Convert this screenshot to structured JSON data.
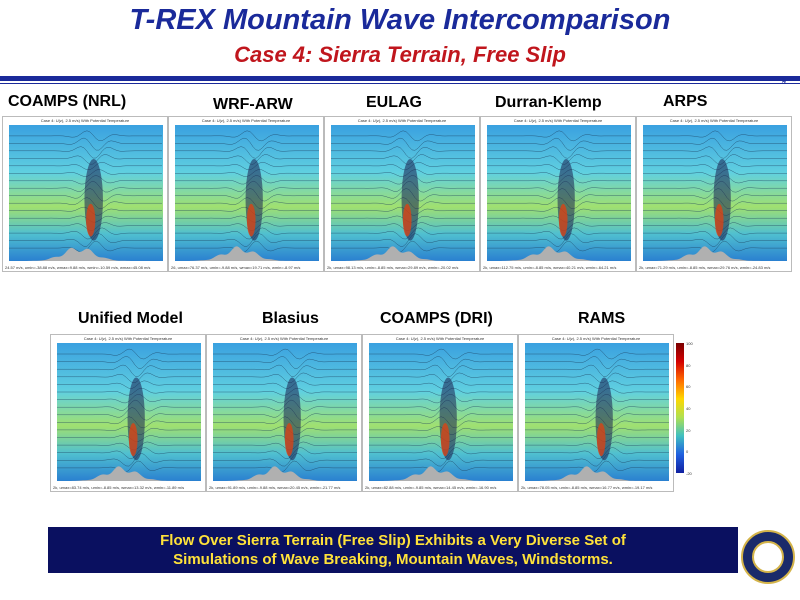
{
  "title": "T-REX Mountain Wave Intercomparison",
  "subtitle": "Case 4:  Sierra Terrain, Free Slip",
  "page_number": "9",
  "panel_title": "Case 4: U(z), 2.5 m/s) With Potential Temperature",
  "panel_xlabel": "Distance (km)",
  "models_top": [
    {
      "name": "COAMPS (NRL)",
      "footer": "24.57 m/s, umin=-38.88 m/s, wmax=9.88 m/s, wmin=-10.59 m/s, wmax=45.08 m/s"
    },
    {
      "name": "WRF-ARW",
      "footer": "26, umax=76.37 m/s, umin=-9.88 m/s, wmax=19.71 m/s, wmin=-8.97 m/s"
    },
    {
      "name": "EULAG",
      "footer": "2k, umax=98.13 m/s, umin=-8.85 m/s, wmax=29.89 m/s, wmin=-20.02 m/s"
    },
    {
      "name": "Durran-Klemp",
      "footer": "2k, umax=112.75 m/s, umin=-8.85 m/s, wmax=40.21 m/s, wmin=-64.21 m/s"
    },
    {
      "name": "ARPS",
      "footer": "2k, umax=71.29 m/s, umin=-8.85 m/s, wmax=29.76 m/s, wmin=-24.83 m/s"
    }
  ],
  "models_bottom": [
    {
      "name": "Unified Model",
      "footer": "2k, umax=83.74 m/s, umin=-8.85 m/s, wmax=13.32 m/s, wmin=-11.89 m/s"
    },
    {
      "name": "Blasius",
      "footer": "2k, umax=91.89 m/s, umin=-9.88 m/s, wmax=20.45 m/s, wmin=-21.77 m/s"
    },
    {
      "name": "COAMPS (DRI)",
      "footer": "2k, umax=82.88 m/s, umin=-9.85 m/s, wmax=14.45 m/s, wmin=-16.90 m/s"
    },
    {
      "name": "RAMS",
      "footer": "2k, umax=78.05 m/s, umin=-8.85 m/s, wmax=16.77 m/s, wmin=-19.17 m/s"
    }
  ],
  "colorbar_ticks": [
    "100",
    "80",
    "60",
    "40",
    "20",
    "0",
    "-20"
  ],
  "banner_line1": "Flow Over Sierra Terrain (Free Slip) Exhibits a Very Diverse Set of",
  "banner_line2": "Simulations of Wave Breaking, Mountain Waves, Windstorms.",
  "colors": {
    "title": "#1a2a9a",
    "subtitle": "#c0161d",
    "banner_bg": "#0a1060",
    "banner_text": "#ffe23a"
  }
}
